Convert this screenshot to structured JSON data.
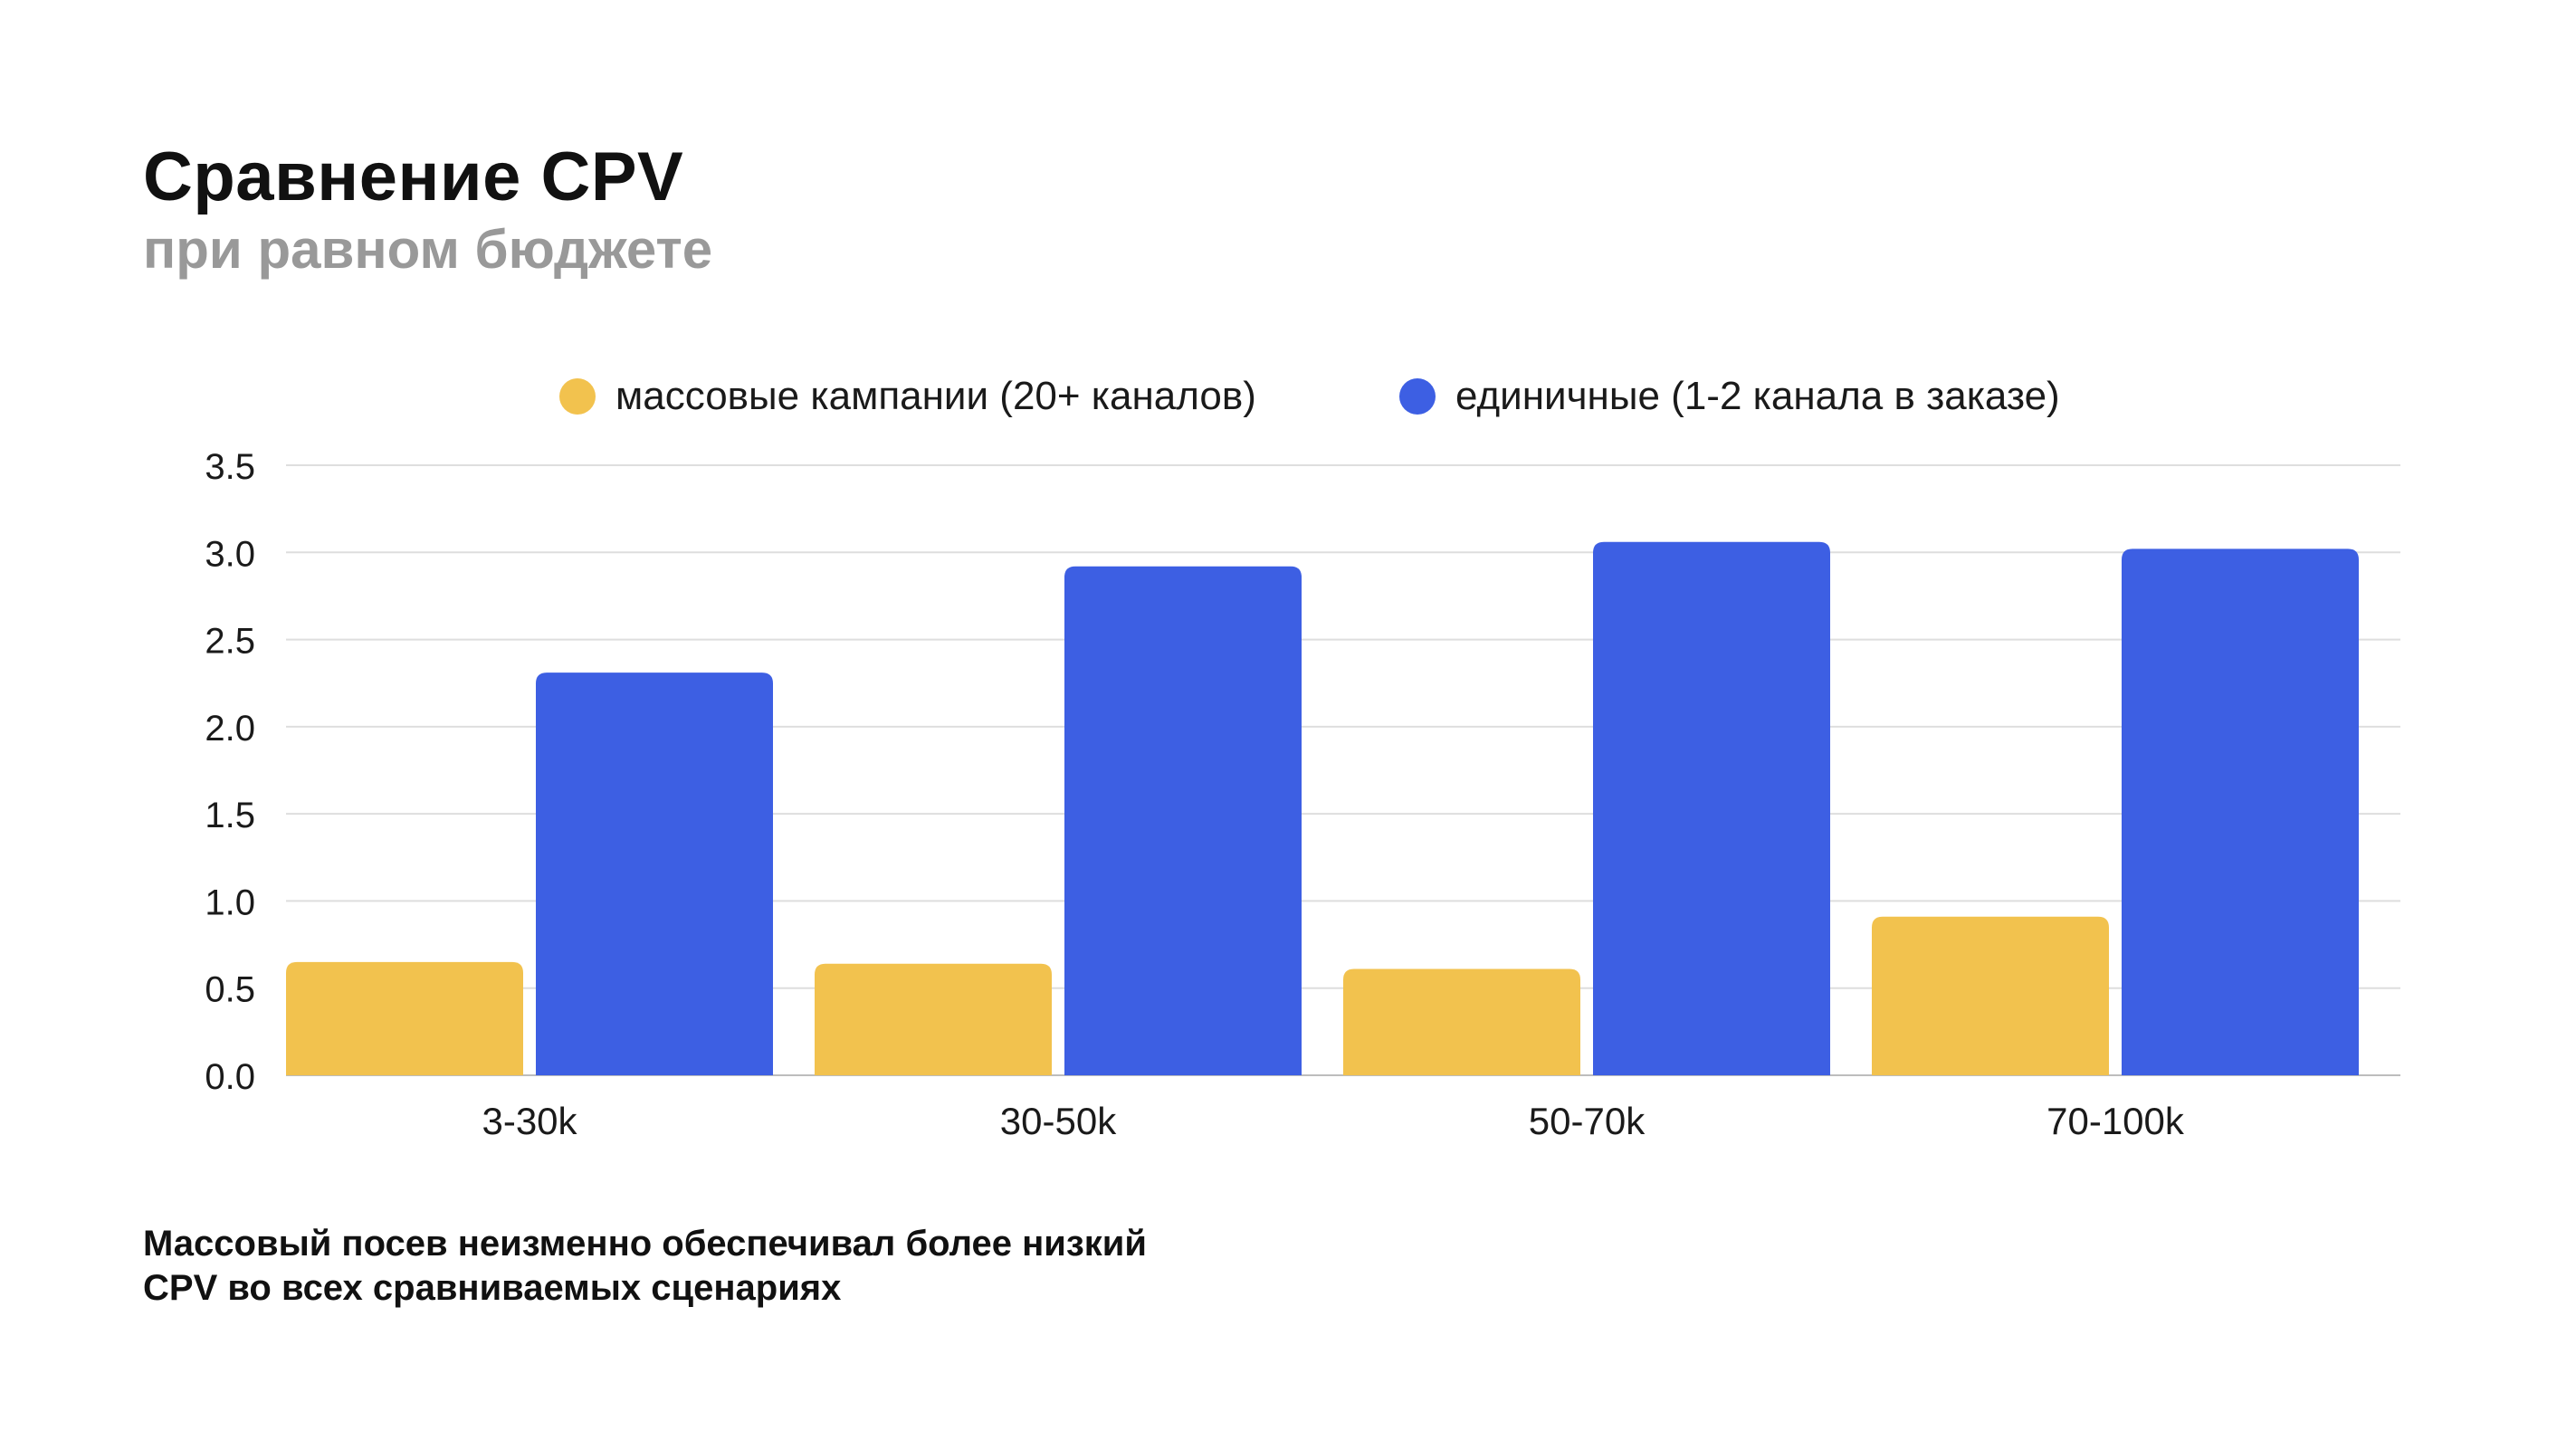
{
  "title": "Сравнение CPV",
  "subtitle": "при равном бюджете",
  "caption": {
    "line1": "Массовый посев неизменно обеспечивал более низкий",
    "line2": "CPV во всех сравниваемых сценариях"
  },
  "chart_data": {
    "type": "bar",
    "title": "Сравнение CPV",
    "subtitle": "при равном бюджете",
    "categories": [
      "3-30k",
      "30-50k",
      "50-70k",
      "70-100k"
    ],
    "series": [
      {
        "name": "массовые кампании (20+ каналов)",
        "color": "#F2C24E",
        "values": [
          0.65,
          0.64,
          0.61,
          0.91
        ]
      },
      {
        "name": "единичные (1-2 канала в заказе)",
        "color": "#3D5FE3",
        "values": [
          2.31,
          2.92,
          3.06,
          3.02
        ]
      }
    ],
    "ylim": [
      0,
      3.5
    ],
    "yticks": [
      "0.0",
      "0.5",
      "1.0",
      "1.5",
      "2.0",
      "2.5",
      "3.0",
      "3.5"
    ],
    "grid": true,
    "legend_position": "top-center",
    "xlabel": "",
    "ylabel": ""
  }
}
